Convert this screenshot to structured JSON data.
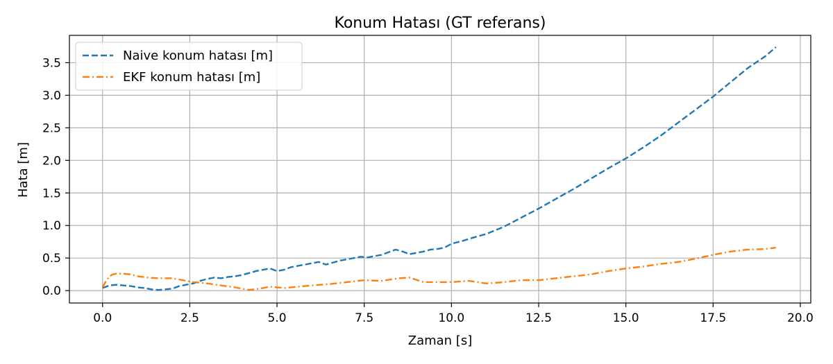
{
  "colors": {
    "naive": "#1f77b4",
    "ekf": "#ff7f0e",
    "grid": "#b0b0b0",
    "axes": "#000000"
  },
  "chart_data": {
    "type": "line",
    "title": "Konum Hatası (GT referans)",
    "xlabel": "Zaman [s]",
    "ylabel": "Hata [m]",
    "xlim": [
      -0.95,
      20.3
    ],
    "ylim": [
      -0.19,
      3.92
    ],
    "xticks": [
      0.0,
      2.5,
      5.0,
      7.5,
      10.0,
      12.5,
      15.0,
      17.5,
      20.0
    ],
    "xtick_labels": [
      "0.0",
      "2.5",
      "5.0",
      "7.5",
      "10.0",
      "12.5",
      "15.0",
      "17.5",
      "20.0"
    ],
    "yticks": [
      0.0,
      0.5,
      1.0,
      1.5,
      2.0,
      2.5,
      3.0,
      3.5
    ],
    "ytick_labels": [
      "0.0",
      "0.5",
      "1.0",
      "1.5",
      "2.0",
      "2.5",
      "3.0",
      "3.5"
    ],
    "grid": true,
    "legend_position": "top-left",
    "series": [
      {
        "name": "Naive konum hatası [m]",
        "style": "dashed",
        "color": "#1f77b4",
        "x": [
          0.0,
          0.2,
          0.4,
          0.6,
          0.8,
          1.0,
          1.2,
          1.4,
          1.6,
          1.8,
          2.0,
          2.2,
          2.4,
          2.6,
          2.8,
          3.0,
          3.2,
          3.4,
          3.6,
          3.8,
          4.0,
          4.2,
          4.4,
          4.6,
          4.8,
          5.0,
          5.2,
          5.4,
          5.6,
          5.8,
          6.0,
          6.2,
          6.4,
          6.6,
          6.8,
          7.0,
          7.2,
          7.4,
          7.6,
          7.8,
          8.0,
          8.2,
          8.4,
          8.6,
          8.8,
          9.0,
          9.2,
          9.4,
          9.6,
          9.8,
          10.0,
          10.3,
          10.6,
          11.0,
          11.5,
          12.0,
          12.5,
          13.0,
          13.5,
          14.0,
          14.5,
          15.0,
          15.5,
          16.0,
          16.5,
          17.0,
          17.5,
          18.0,
          18.5,
          19.0,
          19.3
        ],
        "y": [
          0.04,
          0.08,
          0.09,
          0.08,
          0.07,
          0.05,
          0.04,
          0.02,
          0.01,
          0.02,
          0.03,
          0.07,
          0.09,
          0.11,
          0.15,
          0.18,
          0.2,
          0.19,
          0.21,
          0.22,
          0.24,
          0.27,
          0.3,
          0.32,
          0.34,
          0.3,
          0.32,
          0.36,
          0.38,
          0.4,
          0.42,
          0.44,
          0.4,
          0.43,
          0.46,
          0.48,
          0.5,
          0.52,
          0.51,
          0.53,
          0.55,
          0.59,
          0.63,
          0.6,
          0.56,
          0.58,
          0.6,
          0.63,
          0.64,
          0.66,
          0.72,
          0.76,
          0.81,
          0.87,
          0.98,
          1.12,
          1.26,
          1.41,
          1.56,
          1.72,
          1.88,
          2.03,
          2.2,
          2.38,
          2.58,
          2.78,
          2.98,
          3.2,
          3.42,
          3.6,
          3.74
        ]
      },
      {
        "name": "EKF konum hatası [m]",
        "style": "dashdot",
        "color": "#ff7f0e",
        "x": [
          0.0,
          0.1,
          0.2,
          0.3,
          0.4,
          0.6,
          0.8,
          1.0,
          1.3,
          1.6,
          2.0,
          2.3,
          2.6,
          3.0,
          3.4,
          3.8,
          4.2,
          4.5,
          4.8,
          5.2,
          5.6,
          6.0,
          6.5,
          7.0,
          7.5,
          8.0,
          8.5,
          8.8,
          9.2,
          9.6,
          10.0,
          10.5,
          11.0,
          11.5,
          12.0,
          12.5,
          13.0,
          13.5,
          14.0,
          14.5,
          15.0,
          15.5,
          16.0,
          16.5,
          17.0,
          17.5,
          18.0,
          18.5,
          19.0,
          19.3
        ],
        "y": [
          0.05,
          0.15,
          0.22,
          0.25,
          0.26,
          0.26,
          0.25,
          0.22,
          0.2,
          0.19,
          0.19,
          0.16,
          0.13,
          0.11,
          0.08,
          0.05,
          0.01,
          0.03,
          0.06,
          0.04,
          0.06,
          0.08,
          0.1,
          0.13,
          0.16,
          0.15,
          0.19,
          0.2,
          0.13,
          0.13,
          0.13,
          0.15,
          0.11,
          0.13,
          0.16,
          0.16,
          0.19,
          0.22,
          0.25,
          0.3,
          0.34,
          0.37,
          0.41,
          0.44,
          0.49,
          0.55,
          0.6,
          0.63,
          0.64,
          0.66
        ]
      }
    ]
  }
}
